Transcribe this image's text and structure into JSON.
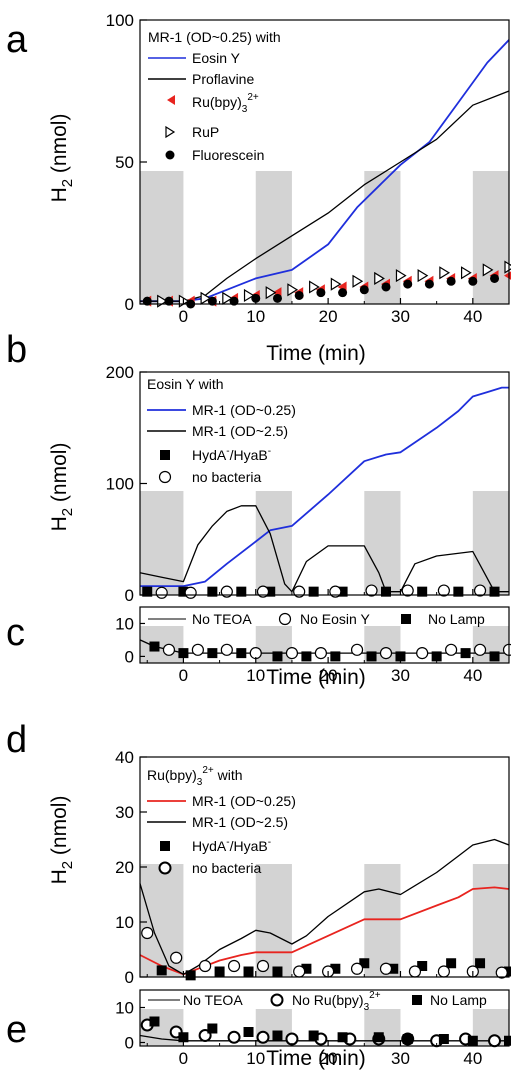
{
  "colors": {
    "blue": "#1f2fdc",
    "red": "#e8241f",
    "black": "#000000",
    "shade": "#d3d3d3"
  },
  "chart_data": [
    {
      "panel": "a",
      "type": "line",
      "xlabel": "Time (min)",
      "ylabel": "H2 (nmol)",
      "xlim": [
        -6,
        45
      ],
      "ylim": [
        0,
        100
      ],
      "xticks": [
        0,
        10,
        20,
        30,
        40
      ],
      "yticks": [
        0,
        50,
        100
      ],
      "legend_title": "MR-1 (OD~0.25) with",
      "shaded_intervals": [
        [
          -6,
          0
        ],
        [
          10,
          15
        ],
        [
          25,
          30
        ],
        [
          40,
          45
        ]
      ],
      "series": [
        {
          "name": "Eosin Y",
          "style": "line",
          "color": "#1f2fdc",
          "x": [
            -6,
            0,
            3,
            6,
            10,
            15,
            20,
            24,
            28,
            30,
            34,
            38,
            42,
            45
          ],
          "y": [
            1,
            1,
            2,
            5,
            9,
            12,
            21,
            34,
            44,
            49,
            57,
            71,
            85,
            93
          ]
        },
        {
          "name": "Proflavine",
          "style": "line",
          "color": "#000000",
          "x": [
            -6,
            0,
            3,
            6,
            10,
            15,
            20,
            25,
            30,
            35,
            40,
            45
          ],
          "y": [
            1,
            1,
            3,
            9,
            16,
            24,
            32,
            42,
            50,
            58,
            70,
            75
          ]
        },
        {
          "name": "Ru(bpy)3 2+",
          "style": "marker",
          "marker": "triangle-left",
          "color": "#e8241f",
          "x": [
            -5,
            -2,
            1,
            4,
            7,
            10,
            13,
            16,
            19,
            22,
            25,
            28,
            31,
            34,
            37,
            40,
            43,
            45
          ],
          "y": [
            1,
            1,
            1,
            1,
            2,
            3,
            4,
            4,
            5,
            6,
            6,
            7,
            8,
            8,
            9,
            9,
            10,
            10
          ]
        },
        {
          "name": "RuP",
          "style": "marker",
          "marker": "triangle-right-open",
          "color": "#000000",
          "x": [
            -3,
            0,
            3,
            6,
            9,
            12,
            15,
            18,
            21,
            24,
            27,
            30,
            33,
            36,
            39,
            42,
            45
          ],
          "y": [
            1,
            1,
            2,
            2,
            3,
            4,
            5,
            6,
            7,
            8,
            9,
            10,
            10,
            11,
            11,
            12,
            13
          ]
        },
        {
          "name": "Fluorescein",
          "style": "marker",
          "marker": "circle",
          "color": "#000000",
          "x": [
            -5,
            -2,
            1,
            4,
            7,
            10,
            13,
            16,
            19,
            22,
            25,
            28,
            31,
            34,
            37,
            40,
            43
          ],
          "y": [
            1,
            1,
            0,
            1,
            1,
            2,
            2,
            3,
            4,
            4,
            5,
            6,
            7,
            7,
            8,
            8,
            9
          ]
        }
      ]
    },
    {
      "panel": "b",
      "type": "line",
      "xlabel": "",
      "ylabel": "H2 (nmol)",
      "xlim": [
        -6,
        45
      ],
      "ylim": [
        0,
        200
      ],
      "xticks": [
        0,
        10,
        20,
        30,
        40
      ],
      "yticks": [
        0,
        100,
        200
      ],
      "legend_title": "Eosin Y with",
      "shaded_intervals": [
        [
          -6,
          0
        ],
        [
          10,
          15
        ],
        [
          25,
          30
        ],
        [
          40,
          45
        ]
      ],
      "series": [
        {
          "name": "MR-1 (OD~0.25)",
          "style": "line",
          "color": "#1f2fdc",
          "x": [
            -6,
            0,
            3,
            6,
            10,
            12,
            15,
            20,
            25,
            28,
            30,
            35,
            38,
            40,
            42,
            44,
            45
          ],
          "y": [
            8,
            8,
            12,
            28,
            48,
            58,
            62,
            90,
            120,
            126,
            128,
            150,
            165,
            178,
            182,
            186,
            186
          ]
        },
        {
          "name": "MR-1 (OD~2.5)",
          "style": "line",
          "color": "#000000",
          "x": [
            -6,
            -3,
            0,
            2,
            4,
            6,
            8,
            10,
            12,
            14,
            15,
            17,
            20,
            25,
            27,
            28,
            30,
            32,
            35,
            40,
            42,
            43,
            45
          ],
          "y": [
            20,
            16,
            12,
            45,
            62,
            75,
            80,
            80,
            55,
            10,
            3,
            30,
            44,
            44,
            20,
            3,
            3,
            28,
            35,
            39,
            15,
            3,
            3
          ]
        },
        {
          "name": "HydA-/HyaB-",
          "style": "marker",
          "marker": "square",
          "color": "#000000",
          "x": [
            -5,
            0,
            4,
            8,
            12,
            18,
            22,
            28,
            33,
            38,
            43
          ],
          "y": [
            3,
            3,
            3,
            3,
            3,
            3,
            3,
            3,
            3,
            3,
            3
          ]
        },
        {
          "name": "no bacteria",
          "style": "marker",
          "marker": "circle-open",
          "color": "#000000",
          "x": [
            -3,
            1,
            6,
            11,
            16,
            21,
            26,
            31,
            36,
            41
          ],
          "y": [
            2,
            2,
            3,
            3,
            3,
            3,
            4,
            4,
            4,
            4
          ]
        }
      ]
    },
    {
      "panel": "c",
      "type": "line",
      "xlabel": "Time (min)",
      "ylabel": "",
      "xlim": [
        -6,
        45
      ],
      "ylim": [
        -2,
        15
      ],
      "xticks": [
        0,
        10,
        20,
        30,
        40
      ],
      "yticks": [
        0,
        10
      ],
      "shaded_intervals": [
        [
          -6,
          0
        ],
        [
          10,
          15
        ],
        [
          25,
          30
        ],
        [
          40,
          45
        ]
      ],
      "series": [
        {
          "name": "No TEOA",
          "style": "line",
          "color": "#000000",
          "x": [
            -6,
            -4,
            -2,
            0,
            10,
            20,
            30,
            40,
            45
          ],
          "y": [
            5,
            3,
            2,
            1,
            1,
            1,
            1,
            1,
            1
          ]
        },
        {
          "name": "No Eosin Y",
          "style": "marker",
          "marker": "circle-open",
          "color": "#000000",
          "x": [
            -2,
            2,
            6,
            10,
            15,
            19,
            24,
            28,
            33,
            37,
            41,
            45
          ],
          "y": [
            2,
            2,
            2,
            1,
            1,
            1,
            2,
            1,
            1,
            2,
            2,
            2
          ]
        },
        {
          "name": "No Lamp",
          "style": "marker",
          "marker": "square",
          "color": "#000000",
          "x": [
            -4,
            0,
            4,
            8,
            13,
            17,
            21,
            26,
            30,
            35,
            39,
            43
          ],
          "y": [
            3,
            1,
            1,
            1,
            0,
            0,
            0,
            0,
            0,
            0,
            1,
            0
          ]
        }
      ]
    },
    {
      "panel": "d",
      "type": "line",
      "xlabel": "",
      "ylabel": "H2 (nmol)",
      "xlim": [
        -6,
        45
      ],
      "ylim": [
        0,
        40
      ],
      "xticks": [
        0,
        10,
        20,
        30,
        40
      ],
      "yticks": [
        0,
        10,
        20,
        30,
        40
      ],
      "legend_title": "Ru(bpy)3 2+ with",
      "shaded_intervals": [
        [
          -6,
          0
        ],
        [
          10,
          15
        ],
        [
          25,
          30
        ],
        [
          40,
          45
        ]
      ],
      "series": [
        {
          "name": "MR-1 (OD~0.25)",
          "style": "line",
          "color": "#e8241f",
          "x": [
            -6,
            -3,
            0,
            2,
            5,
            8,
            10,
            12,
            15,
            20,
            25,
            27,
            30,
            35,
            38,
            40,
            43,
            45
          ],
          "y": [
            4,
            2,
            0.5,
            1.5,
            3,
            4,
            4.5,
            4.5,
            4.5,
            7.5,
            10.5,
            10.5,
            10.5,
            13,
            14.5,
            16,
            16.3,
            16
          ]
        },
        {
          "name": "MR-1 (OD~2.5)",
          "style": "line",
          "color": "#000000",
          "x": [
            -6,
            -4,
            -2,
            0,
            2,
            5,
            8,
            10,
            12,
            15,
            17,
            20,
            25,
            27,
            30,
            35,
            38,
            40,
            43,
            45
          ],
          "y": [
            17,
            8,
            2,
            0.5,
            2,
            5,
            7,
            8.5,
            8,
            6,
            7.5,
            11,
            15.5,
            16,
            15,
            19,
            22,
            24,
            25,
            24
          ]
        },
        {
          "name": "HydA-/HyaB-",
          "style": "marker",
          "marker": "square",
          "color": "#000000",
          "x": [
            -3,
            1,
            5,
            9,
            13,
            17,
            21,
            25,
            29,
            33,
            37,
            41,
            45
          ],
          "y": [
            1.2,
            0.3,
            1,
            1,
            1,
            1.5,
            1.5,
            2.5,
            1.5,
            2,
            2.5,
            2.5,
            1
          ]
        },
        {
          "name": "no bacteria",
          "style": "marker",
          "marker": "circle-open",
          "color": "#000000",
          "x": [
            -5,
            -1,
            3,
            7,
            11,
            16,
            20,
            24,
            28,
            32,
            36,
            40,
            44
          ],
          "y": [
            8,
            3.5,
            2,
            2,
            2,
            1,
            1,
            1.5,
            1.5,
            1,
            1,
            1,
            0.8
          ]
        }
      ]
    },
    {
      "panel": "e",
      "type": "line",
      "xlabel": "Time (min)",
      "ylabel": "",
      "xlim": [
        -6,
        45
      ],
      "ylim": [
        -1,
        15
      ],
      "xticks": [
        0,
        10,
        20,
        30,
        40
      ],
      "yticks": [
        0,
        10
      ],
      "shaded_intervals": [
        [
          -6,
          0
        ],
        [
          10,
          15
        ],
        [
          25,
          30
        ],
        [
          40,
          45
        ]
      ],
      "series": [
        {
          "name": "No TEOA",
          "style": "line",
          "color": "#000000",
          "x": [
            -6,
            -3,
            0,
            10,
            20,
            30,
            40,
            45
          ],
          "y": [
            2,
            1,
            0.5,
            0.5,
            0.5,
            0.5,
            0.5,
            0.5
          ]
        },
        {
          "name": "No Ru(bpy)3 2+",
          "style": "marker",
          "marker": "circle-open-bold",
          "color": "#000000",
          "x": [
            -5,
            -1,
            3,
            7,
            11,
            15,
            19,
            23,
            27,
            31,
            35,
            39,
            43
          ],
          "y": [
            5,
            3,
            2,
            1.5,
            1.5,
            1,
            1,
            1,
            1,
            1,
            0.5,
            1,
            0.5
          ]
        },
        {
          "name": "No Lamp",
          "style": "marker",
          "marker": "square",
          "color": "#000000",
          "x": [
            -4,
            0,
            4,
            9,
            13,
            18,
            22,
            27,
            31,
            36,
            40,
            45
          ],
          "y": [
            6,
            1.5,
            4,
            3,
            2,
            2,
            1.5,
            1.5,
            1,
            1,
            0.5,
            0.5
          ]
        }
      ]
    }
  ]
}
